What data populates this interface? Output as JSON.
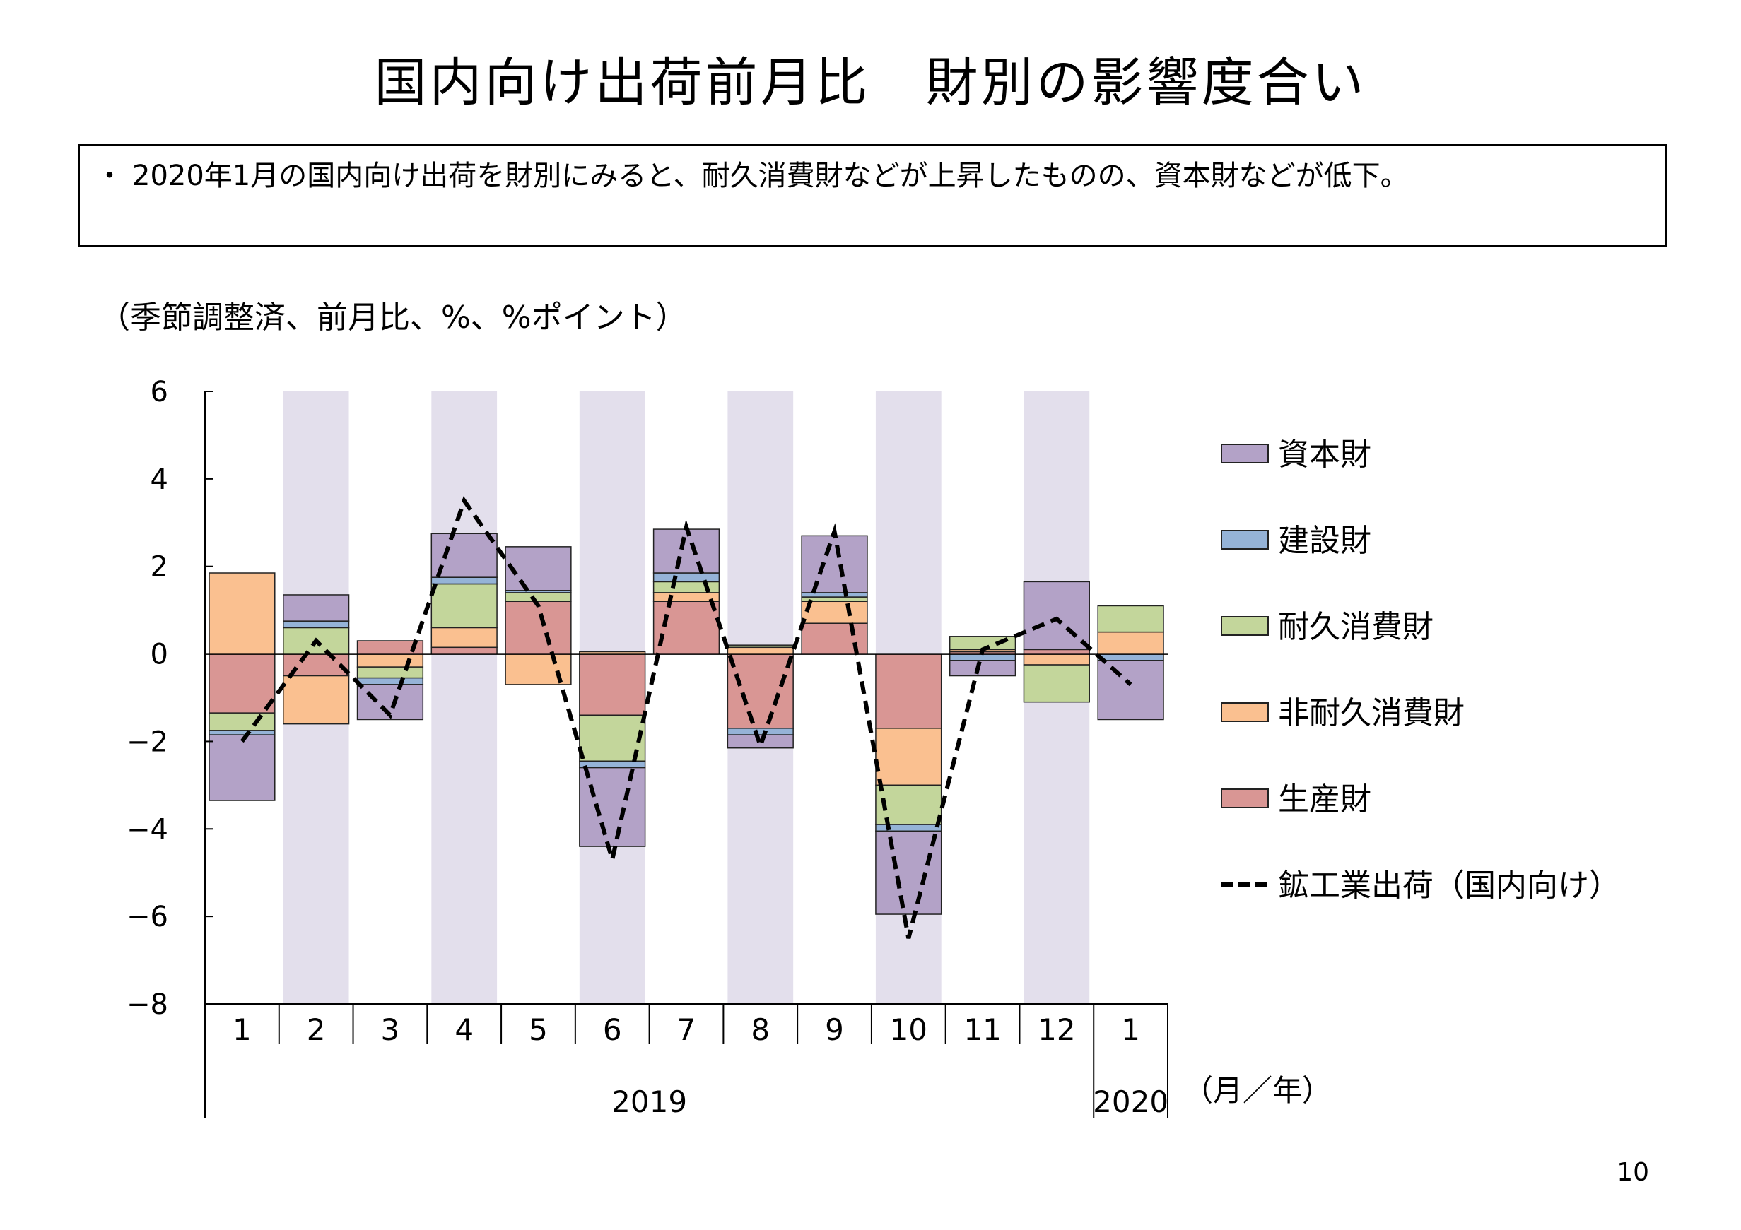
{
  "title": "国内向け出荷前月比　財別の影響度合い",
  "summary": {
    "bullet": "・",
    "text": "2020年1月の国内向け出荷を財別にみると、耐久消費財などが上昇したものの、資本財などが低下。"
  },
  "unit_note": "（季節調整済、前月比、%、%ポイント）",
  "page_number": "10",
  "chart_data": {
    "type": "bar",
    "stacked": true,
    "categories": [
      "1",
      "2",
      "3",
      "4",
      "5",
      "6",
      "7",
      "8",
      "9",
      "10",
      "11",
      "12",
      "1"
    ],
    "year_labels": [
      {
        "label": "2019",
        "from": 0,
        "to": 11
      },
      {
        "label": "2020",
        "from": 12,
        "to": 12
      }
    ],
    "x_unit": "（月／年）",
    "ylim": [
      -8,
      6
    ],
    "yticks": [
      6,
      4,
      2,
      0,
      -2,
      -4,
      -6,
      -8
    ],
    "ytick_labels": [
      "6",
      "4",
      "2",
      "0",
      "−2",
      "−4",
      "−6",
      "−8"
    ],
    "shaded_categories": [
      1,
      3,
      5,
      7,
      9,
      11
    ],
    "shade_color": "#e3dfec",
    "series": [
      {
        "name": "生産財",
        "color": "#d99694",
        "values": [
          -1.35,
          -0.5,
          0.3,
          0.15,
          1.2,
          -1.4,
          1.2,
          -1.7,
          0.7,
          -1.7,
          0.05,
          0.1,
          0.0
        ]
      },
      {
        "name": "非耐久消費財",
        "color": "#fac090",
        "values": [
          1.85,
          -1.1,
          -0.3,
          0.45,
          -0.7,
          0.05,
          0.2,
          0.15,
          0.5,
          -1.3,
          0.05,
          -0.25,
          0.5
        ]
      },
      {
        "name": "耐久消費財",
        "color": "#c3d69b",
        "values": [
          -0.4,
          0.6,
          -0.25,
          1.0,
          0.2,
          -1.05,
          0.25,
          0.05,
          0.1,
          -0.9,
          0.3,
          -0.85,
          0.6
        ]
      },
      {
        "name": "建設財",
        "color": "#95b3d7",
        "values": [
          -0.1,
          0.15,
          -0.15,
          0.15,
          0.05,
          -0.15,
          0.2,
          -0.15,
          0.1,
          -0.15,
          -0.15,
          0.0,
          -0.15
        ]
      },
      {
        "name": "資本財",
        "color": "#b3a2c7",
        "values": [
          -1.5,
          0.6,
          -0.8,
          1.0,
          1.0,
          -1.8,
          1.0,
          -0.3,
          1.3,
          -1.9,
          -0.35,
          1.55,
          -1.35
        ]
      }
    ],
    "line_series": {
      "name": "鉱工業出荷（国内向け）",
      "style": "dashed",
      "color": "#000000",
      "values": [
        -2.0,
        0.3,
        -1.4,
        3.5,
        1.1,
        -4.7,
        2.9,
        -2.1,
        2.8,
        -6.5,
        0.1,
        0.8,
        -0.7
      ]
    },
    "legend": {
      "position": "right",
      "order": [
        "資本財",
        "建設財",
        "耐久消費財",
        "非耐久消費財",
        "生産財",
        "鉱工業出荷（国内向け）"
      ]
    },
    "grid": false
  }
}
